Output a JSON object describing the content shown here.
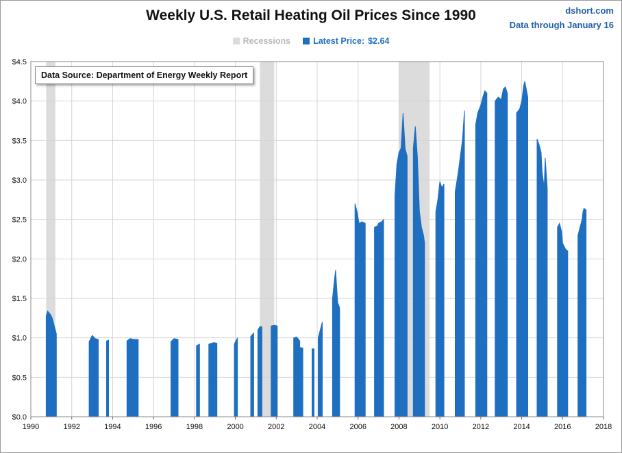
{
  "chart_data": {
    "type": "area",
    "title": "Weekly U.S. Retail Heating Oil Prices Since 1990",
    "source_note": "Data Source: Department of Energy Weekly Report",
    "brand": "dshort.com",
    "data_through": "Data through January 16",
    "legend": {
      "recessions_label": "Recessions",
      "latest_label": "Latest Price:",
      "latest_value": "$2.64",
      "position": "top-center"
    },
    "colors": {
      "series": "#1f6fc0",
      "recession": "#dcdcdc",
      "grid": "#d4d4d4"
    },
    "xlim": [
      1990,
      2018
    ],
    "ylim": [
      0,
      4.5
    ],
    "x_ticks": [
      "1990",
      "1992",
      "1994",
      "1996",
      "1998",
      "2000",
      "2002",
      "2004",
      "2006",
      "2008",
      "2010",
      "2012",
      "2014",
      "2016",
      "2018"
    ],
    "y_ticks": [
      "$0.0",
      "$0.5",
      "$1.0",
      "$1.5",
      "$2.0",
      "$2.5",
      "$3.0",
      "$3.5",
      "$4.0",
      "$4.5"
    ],
    "grid": true,
    "recessions": [
      [
        1990.75,
        1991.2
      ],
      [
        2001.2,
        2001.9
      ],
      [
        2008.0,
        2009.5
      ]
    ],
    "segments": [
      [
        [
          1990.75,
          1.28
        ],
        [
          1990.82,
          1.34
        ],
        [
          1990.95,
          1.3
        ],
        [
          1991.05,
          1.25
        ],
        [
          1991.15,
          1.15
        ],
        [
          1991.25,
          1.05
        ]
      ],
      [
        [
          1992.85,
          0.95
        ],
        [
          1993.0,
          1.03
        ],
        [
          1993.15,
          0.99
        ],
        [
          1993.3,
          0.98
        ]
      ],
      [
        [
          1993.7,
          0.96
        ],
        [
          1993.8,
          0.97
        ]
      ],
      [
        [
          1994.7,
          0.96
        ],
        [
          1994.85,
          0.99
        ],
        [
          1995.05,
          0.98
        ],
        [
          1995.25,
          0.98
        ]
      ],
      [
        [
          1996.85,
          0.95
        ],
        [
          1997.0,
          0.99
        ],
        [
          1997.2,
          0.98
        ]
      ],
      [
        [
          1998.1,
          0.9
        ],
        [
          1998.25,
          0.92
        ]
      ],
      [
        [
          1998.7,
          0.92
        ],
        [
          1998.95,
          0.94
        ],
        [
          1999.1,
          0.93
        ]
      ],
      [
        [
          1999.95,
          0.92
        ],
        [
          2000.1,
          1.0
        ]
      ],
      [
        [
          2000.75,
          1.02
        ],
        [
          2000.9,
          1.06
        ]
      ],
      [
        [
          2001.1,
          1.1
        ],
        [
          2001.2,
          1.14
        ],
        [
          2001.3,
          1.14
        ]
      ],
      [
        [
          2001.75,
          1.15
        ],
        [
          2001.9,
          1.16
        ],
        [
          2002.05,
          1.15
        ]
      ],
      [
        [
          2002.85,
          1.0
        ],
        [
          2003.0,
          1.01
        ],
        [
          2003.15,
          0.96
        ]
      ],
      [
        [
          2003.15,
          0.88
        ],
        [
          2003.3,
          0.87
        ]
      ],
      [
        [
          2003.75,
          0.86
        ],
        [
          2003.85,
          0.86
        ]
      ],
      [
        [
          2004.05,
          1.0
        ],
        [
          2004.15,
          1.1
        ],
        [
          2004.25,
          1.2
        ]
      ],
      [
        [
          2004.75,
          1.5
        ],
        [
          2004.85,
          1.75
        ],
        [
          2004.9,
          1.86
        ],
        [
          2005.0,
          1.45
        ],
        [
          2005.1,
          1.38
        ]
      ],
      [
        [
          2005.85,
          2.7
        ],
        [
          2005.95,
          2.6
        ],
        [
          2006.05,
          2.45
        ],
        [
          2006.2,
          2.47
        ],
        [
          2006.35,
          2.45
        ]
      ],
      [
        [
          2006.8,
          2.4
        ],
        [
          2006.95,
          2.42
        ],
        [
          2007.0,
          2.45
        ],
        [
          2007.15,
          2.47
        ],
        [
          2007.25,
          2.5
        ]
      ],
      [
        [
          2007.8,
          2.8
        ],
        [
          2007.9,
          3.2
        ],
        [
          2008.0,
          3.35
        ],
        [
          2008.1,
          3.4
        ],
        [
          2008.2,
          3.85
        ],
        [
          2008.3,
          3.4
        ],
        [
          2008.4,
          3.3
        ]
      ],
      [
        [
          2008.7,
          3.4
        ],
        [
          2008.8,
          3.68
        ],
        [
          2008.9,
          3.3
        ],
        [
          2009.0,
          2.6
        ],
        [
          2009.1,
          2.4
        ],
        [
          2009.2,
          2.3
        ],
        [
          2009.25,
          2.2
        ]
      ],
      [
        [
          2009.8,
          2.6
        ],
        [
          2009.9,
          2.75
        ],
        [
          2010.0,
          2.98
        ],
        [
          2010.1,
          2.9
        ],
        [
          2010.2,
          2.95
        ]
      ],
      [
        [
          2010.75,
          2.85
        ],
        [
          2010.9,
          3.1
        ],
        [
          2011.0,
          3.3
        ],
        [
          2011.1,
          3.5
        ],
        [
          2011.2,
          3.88
        ]
      ],
      [
        [
          2011.75,
          3.7
        ],
        [
          2011.85,
          3.85
        ],
        [
          2012.0,
          3.95
        ],
        [
          2012.1,
          4.05
        ],
        [
          2012.2,
          4.13
        ],
        [
          2012.3,
          4.1
        ]
      ],
      [
        [
          2012.7,
          4.0
        ],
        [
          2012.85,
          4.05
        ],
        [
          2013.0,
          4.02
        ],
        [
          2013.1,
          4.15
        ],
        [
          2013.2,
          4.18
        ],
        [
          2013.3,
          4.1
        ]
      ],
      [
        [
          2013.75,
          3.85
        ],
        [
          2013.9,
          3.9
        ],
        [
          2014.0,
          4.0
        ],
        [
          2014.1,
          4.2
        ],
        [
          2014.15,
          4.25
        ],
        [
          2014.3,
          4.05
        ]
      ],
      [
        [
          2014.75,
          3.52
        ],
        [
          2014.85,
          3.45
        ],
        [
          2014.95,
          3.35
        ],
        [
          2015.0,
          3.1
        ],
        [
          2015.1,
          2.9
        ],
        [
          2015.15,
          3.28
        ],
        [
          2015.25,
          2.9
        ]
      ],
      [
        [
          2015.75,
          2.4
        ],
        [
          2015.85,
          2.45
        ],
        [
          2015.95,
          2.35
        ],
        [
          2016.0,
          2.2
        ],
        [
          2016.15,
          2.12
        ],
        [
          2016.25,
          2.1
        ]
      ],
      [
        [
          2016.75,
          2.3
        ],
        [
          2016.85,
          2.4
        ],
        [
          2016.95,
          2.5
        ],
        [
          2017.0,
          2.6
        ],
        [
          2017.05,
          2.64
        ],
        [
          2017.15,
          2.62
        ]
      ]
    ]
  }
}
